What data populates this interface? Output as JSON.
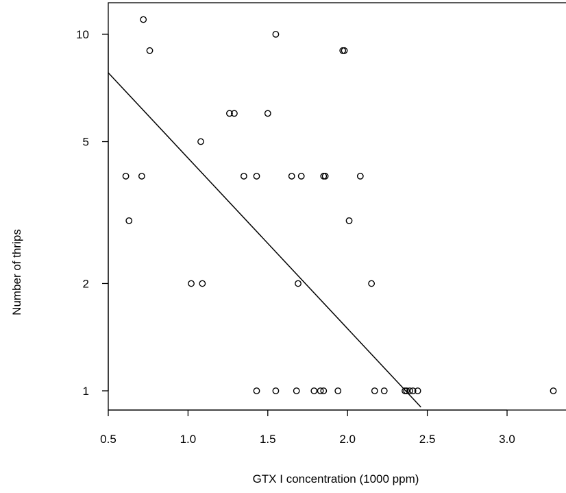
{
  "chart_data": {
    "type": "scatter",
    "xlabel": "GTX I concentration (1000 ppm)",
    "ylabel": "Number of thrips",
    "xlim": [
      0.5,
      3.6
    ],
    "ylim": [
      0.9,
      11.5
    ],
    "y_scale": "log",
    "x_ticks": [
      0.5,
      1.0,
      1.5,
      2.0,
      2.5,
      3.0
    ],
    "x_tick_labels": [
      "0.5",
      "1.0",
      "1.5",
      "2.0",
      "2.5",
      "3.0"
    ],
    "y_ticks": [
      1,
      2,
      5,
      10
    ],
    "y_tick_labels": [
      "1",
      "2",
      "5",
      "10"
    ],
    "points": [
      {
        "x": 0.72,
        "y": 11
      },
      {
        "x": 0.76,
        "y": 9
      },
      {
        "x": 1.55,
        "y": 10
      },
      {
        "x": 1.97,
        "y": 9
      },
      {
        "x": 1.98,
        "y": 9
      },
      {
        "x": 1.26,
        "y": 6
      },
      {
        "x": 1.29,
        "y": 6
      },
      {
        "x": 1.5,
        "y": 6
      },
      {
        "x": 1.08,
        "y": 5
      },
      {
        "x": 0.61,
        "y": 4
      },
      {
        "x": 0.71,
        "y": 4
      },
      {
        "x": 1.35,
        "y": 4
      },
      {
        "x": 1.43,
        "y": 4
      },
      {
        "x": 1.65,
        "y": 4
      },
      {
        "x": 1.71,
        "y": 4
      },
      {
        "x": 1.85,
        "y": 4
      },
      {
        "x": 1.86,
        "y": 4
      },
      {
        "x": 2.08,
        "y": 4
      },
      {
        "x": 0.63,
        "y": 3
      },
      {
        "x": 2.01,
        "y": 3
      },
      {
        "x": 1.02,
        "y": 2
      },
      {
        "x": 1.09,
        "y": 2
      },
      {
        "x": 1.69,
        "y": 2
      },
      {
        "x": 2.15,
        "y": 2
      },
      {
        "x": 1.43,
        "y": 1
      },
      {
        "x": 1.55,
        "y": 1
      },
      {
        "x": 1.68,
        "y": 1
      },
      {
        "x": 1.79,
        "y": 1
      },
      {
        "x": 1.83,
        "y": 1
      },
      {
        "x": 1.85,
        "y": 1
      },
      {
        "x": 1.94,
        "y": 1
      },
      {
        "x": 2.17,
        "y": 1
      },
      {
        "x": 2.23,
        "y": 1
      },
      {
        "x": 2.36,
        "y": 1
      },
      {
        "x": 2.37,
        "y": 1
      },
      {
        "x": 2.39,
        "y": 1
      },
      {
        "x": 2.41,
        "y": 1
      },
      {
        "x": 2.44,
        "y": 1
      },
      {
        "x": 3.29,
        "y": 1
      }
    ],
    "fit_line": {
      "x": [
        0.5,
        2.46
      ],
      "y": [
        7.8,
        0.9
      ]
    },
    "grid": false,
    "legend": "none"
  }
}
